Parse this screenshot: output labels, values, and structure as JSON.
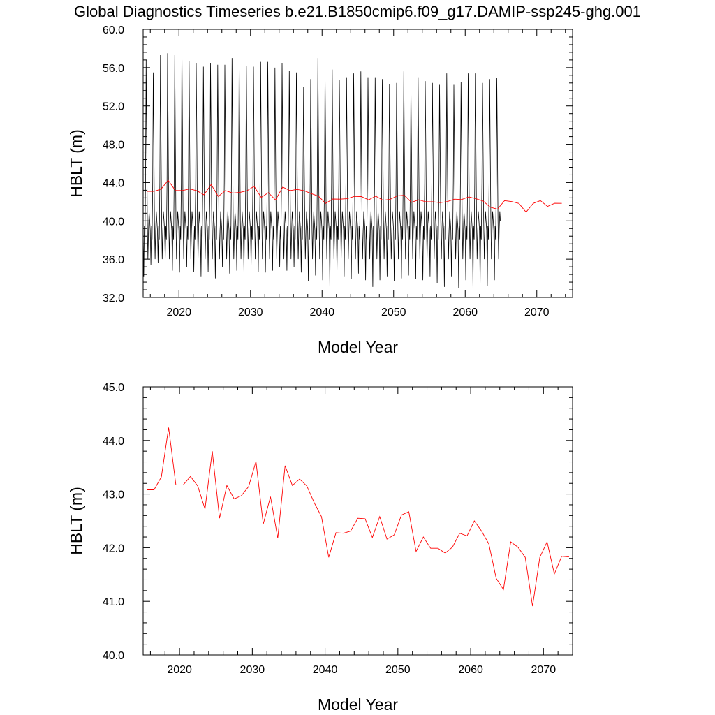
{
  "title": "Global Diagnostics Timeseries b.e21.B1850cmip6.f09_g17.DAMIP-ssp245-ghg.001",
  "colors": {
    "monthly": "#000000",
    "annual": "#ff0000",
    "axis": "#000000"
  },
  "chart_data": [
    {
      "type": "line",
      "xlabel": "Model Year",
      "ylabel": "HBLT (m)",
      "xlim": [
        2015,
        2075
      ],
      "ylim": [
        32.0,
        60.0
      ],
      "xticks": [
        "2020",
        "2030",
        "2040",
        "2050",
        "2060",
        "2070"
      ],
      "yticks": [
        "32.0",
        "36.0",
        "40.0",
        "44.0",
        "48.0",
        "52.0",
        "56.0",
        "60.0"
      ],
      "monthly_series": {
        "x_start": 2015.0,
        "x_step": 0.0833333,
        "annual_pattern": [
          39.0,
          34.0,
          39.5,
          38.0,
          44.0,
          55.5,
          48.0,
          40.0,
          36.0,
          39.0,
          41.0,
          40.0
        ],
        "annual_peaks": [
          56.8,
          55.5,
          57.3,
          57.5,
          57.3,
          58.0,
          56.7,
          56.5,
          56.1,
          56.5,
          56.3,
          56.3,
          57.0,
          56.8,
          56.2,
          56.1,
          56.6,
          56.6,
          56.0,
          56.5,
          55.7,
          55.5,
          54.0,
          54.8,
          57.0,
          55.5,
          55.8,
          54.7,
          55.0,
          55.4,
          55.6,
          55.0,
          55.0,
          54.8,
          54.3,
          54.4,
          55.6,
          54.0,
          55.0,
          54.6,
          54.4,
          54.2,
          55.4,
          54.2,
          54.5,
          55.4,
          55.4,
          54.4,
          54.8,
          54.9
        ],
        "annual_troughs": [
          34.2,
          35.4,
          35.6,
          36.0,
          34.8,
          34.6,
          35.2,
          34.7,
          34.2,
          34.7,
          34.0,
          35.2,
          34.5,
          34.8,
          34.7,
          35.3,
          34.7,
          34.6,
          34.8,
          35.2,
          34.8,
          35.2,
          34.6,
          33.7,
          34.3,
          33.8,
          33.1,
          34.8,
          34.2,
          33.9,
          34.5,
          33.8,
          33.1,
          33.8,
          34.2,
          33.7,
          34.0,
          34.3,
          33.9,
          33.8,
          34.2,
          33.5,
          33.1,
          34.2,
          33.0,
          33.8,
          33.0,
          33.4,
          33.2,
          33.8
        ]
      },
      "series": [
        {
          "x": [
            2015.5,
            2016.5,
            2017.5,
            2018.5,
            2019.5,
            2020.5,
            2021.5,
            2022.5,
            2023.5,
            2024.5,
            2025.5,
            2026.5,
            2027.5,
            2028.5,
            2029.5,
            2030.5,
            2031.5,
            2032.5,
            2033.5,
            2034.5,
            2035.5,
            2036.5,
            2037.5,
            2038.5,
            2039.5,
            2040.5,
            2041.5,
            2042.5,
            2043.5,
            2044.5,
            2045.5,
            2046.5,
            2047.5,
            2048.5,
            2049.5,
            2050.5,
            2051.5,
            2052.5,
            2053.5,
            2054.5,
            2055.5,
            2056.5,
            2057.5,
            2058.5,
            2059.5,
            2060.5,
            2061.5,
            2062.5,
            2063.5,
            2064.5,
            2065.5,
            2066.5,
            2067.5,
            2068.5,
            2069.5,
            2070.5,
            2071.5,
            2072.5,
            2073.5
          ],
          "y": [
            43.08,
            43.08,
            43.32,
            44.24,
            43.17,
            43.17,
            43.33,
            43.15,
            42.72,
            43.8,
            42.55,
            43.16,
            42.91,
            42.97,
            43.14,
            43.61,
            42.44,
            42.95,
            42.18,
            43.53,
            43.16,
            43.28,
            43.15,
            42.84,
            42.58,
            41.82,
            42.28,
            42.27,
            42.31,
            42.55,
            42.54,
            42.19,
            42.58,
            42.16,
            42.24,
            42.61,
            42.67,
            41.93,
            42.2,
            41.99,
            41.99,
            41.9,
            42.01,
            42.27,
            42.22,
            42.5,
            42.31,
            42.07,
            41.43,
            41.22,
            42.11,
            42.01,
            41.82,
            40.91,
            41.82,
            42.11,
            41.51,
            41.84,
            41.83
          ]
        }
      ]
    },
    {
      "type": "line",
      "xlabel": "Model Year",
      "ylabel": "HBLT (m)",
      "xlim": [
        2015,
        2074
      ],
      "ylim": [
        40.0,
        45.0
      ],
      "xticks": [
        "2020",
        "2030",
        "2040",
        "2050",
        "2060",
        "2070"
      ],
      "yticks": [
        "40.0",
        "41.0",
        "42.0",
        "43.0",
        "44.0",
        "45.0"
      ],
      "series": [
        {
          "x": [
            2015.5,
            2016.5,
            2017.5,
            2018.5,
            2019.5,
            2020.5,
            2021.5,
            2022.5,
            2023.5,
            2024.5,
            2025.5,
            2026.5,
            2027.5,
            2028.5,
            2029.5,
            2030.5,
            2031.5,
            2032.5,
            2033.5,
            2034.5,
            2035.5,
            2036.5,
            2037.5,
            2038.5,
            2039.5,
            2040.5,
            2041.5,
            2042.5,
            2043.5,
            2044.5,
            2045.5,
            2046.5,
            2047.5,
            2048.5,
            2049.5,
            2050.5,
            2051.5,
            2052.5,
            2053.5,
            2054.5,
            2055.5,
            2056.5,
            2057.5,
            2058.5,
            2059.5,
            2060.5,
            2061.5,
            2062.5,
            2063.5,
            2064.5,
            2065.5,
            2066.5,
            2067.5,
            2068.5,
            2069.5,
            2070.5,
            2071.5,
            2072.5,
            2073.5
          ],
          "y": [
            43.08,
            43.08,
            43.32,
            44.24,
            43.17,
            43.17,
            43.33,
            43.15,
            42.72,
            43.8,
            42.55,
            43.16,
            42.91,
            42.97,
            43.14,
            43.61,
            42.44,
            42.95,
            42.18,
            43.53,
            43.16,
            43.28,
            43.15,
            42.84,
            42.58,
            41.82,
            42.28,
            42.27,
            42.31,
            42.55,
            42.54,
            42.19,
            42.58,
            42.16,
            42.24,
            42.61,
            42.67,
            41.93,
            42.2,
            41.99,
            41.99,
            41.9,
            42.01,
            42.27,
            42.22,
            42.5,
            42.31,
            42.07,
            41.43,
            41.22,
            42.11,
            42.01,
            41.82,
            40.91,
            41.82,
            42.11,
            41.51,
            41.84,
            41.83
          ]
        }
      ]
    }
  ]
}
